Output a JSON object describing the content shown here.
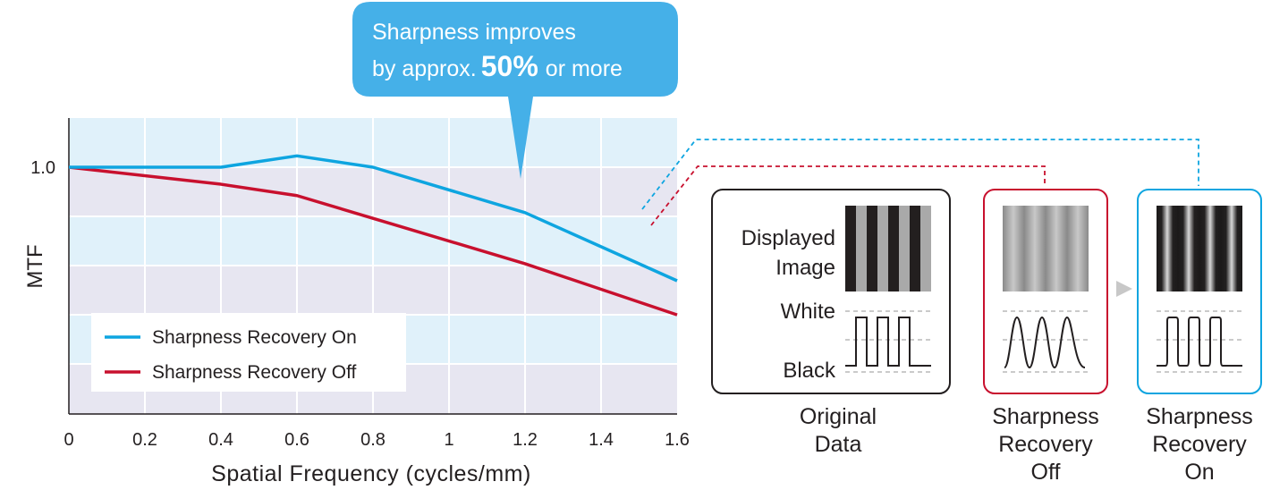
{
  "callout": {
    "line1": "Sharpness improves",
    "line2_prefix": "by approx.",
    "line2_value": "50%",
    "line2_suffix": "or more"
  },
  "chart_data": {
    "type": "line",
    "title": "",
    "xlabel": "Spatial Frequency (cycles/mm)",
    "ylabel": "MTF",
    "xlim": [
      0,
      1.6
    ],
    "x_ticks": [
      "0",
      "0.2",
      "0.4",
      "0.6",
      "0.8",
      "1",
      "1.2",
      "1.4",
      "1.6"
    ],
    "y_ticks": [
      "1.0"
    ],
    "grid": true,
    "legend_position": "bottom-left",
    "series": [
      {
        "name": "Sharpness Recovery On",
        "color": "#0ea5e0",
        "points": [
          [
            0,
            1.0
          ],
          [
            0.4,
            1.0
          ],
          [
            0.6,
            1.01
          ],
          [
            0.8,
            1.0
          ],
          [
            1.2,
            0.96
          ],
          [
            1.6,
            0.9
          ]
        ]
      },
      {
        "name": "Sharpness Recovery Off",
        "color": "#c8102e",
        "points": [
          [
            0,
            1.0
          ],
          [
            0.4,
            0.985
          ],
          [
            0.6,
            0.975
          ],
          [
            0.8,
            0.955
          ],
          [
            1.2,
            0.915
          ],
          [
            1.6,
            0.87
          ]
        ]
      }
    ]
  },
  "comparison": {
    "original": {
      "row_label_top_1": "Displayed",
      "row_label_top_2": "Image",
      "white_label": "White",
      "black_label": "Black",
      "caption_1": "Original",
      "caption_2": "Data"
    },
    "off": {
      "caption_1": "Sharpness",
      "caption_2": "Recovery",
      "caption_3": "Off",
      "color": "#c8102e"
    },
    "on": {
      "caption_1": "Sharpness",
      "caption_2": "Recovery",
      "caption_3": "On",
      "color": "#0ea5e0"
    }
  }
}
